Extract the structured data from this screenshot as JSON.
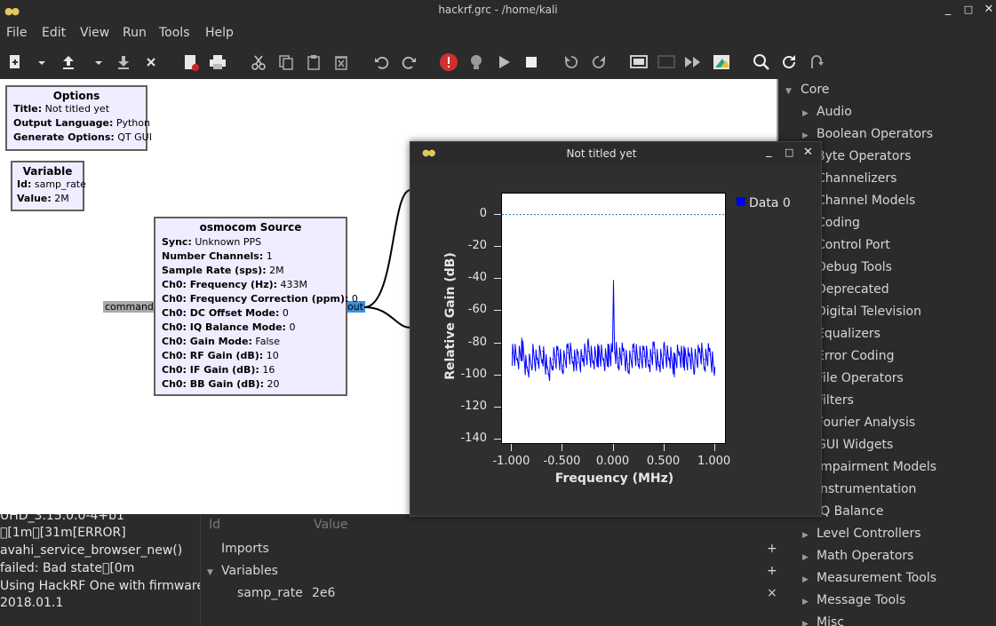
{
  "window": {
    "title": "hackrf.grc - /home/kali",
    "controls": {
      "minimize": "_",
      "maximize": "□",
      "close": "✕"
    }
  },
  "menu": [
    "File",
    "Edit",
    "View",
    "Run",
    "Tools",
    "Help"
  ],
  "toolbar_icons": [
    "new-icon",
    "new-dropdown-icon",
    "open-icon",
    "open-dropdown-icon",
    "save-icon",
    "close-icon",
    "document-properties-icon",
    "print-icon",
    "cut-icon",
    "copy-icon",
    "paste-icon",
    "delete-icon",
    "undo-icon",
    "redo-icon",
    "error-icon",
    "generate-icon",
    "execute-icon",
    "stop-icon",
    "rotate-ccw-icon",
    "rotate-cw-icon",
    "enable-icon",
    "disable-icon",
    "bypass-icon",
    "create-hier-icon",
    "find-icon",
    "reload-icon",
    "open-hier-icon"
  ],
  "blocks": {
    "options": {
      "title": "Options",
      "rows": [
        {
          "k": "Title:",
          "v": " Not titled yet"
        },
        {
          "k": "Output Language:",
          "v": " Python"
        },
        {
          "k": "Generate Options:",
          "v": " QT GUI"
        }
      ]
    },
    "variable": {
      "title": "Variable",
      "rows": [
        {
          "k": "Id:",
          "v": " samp_rate"
        },
        {
          "k": "Value:",
          "v": " 2M"
        }
      ]
    },
    "osmocom": {
      "title": "osmocom Source",
      "rows": [
        {
          "k": "Sync:",
          "v": " Unknown PPS"
        },
        {
          "k": "Number Channels:",
          "v": " 1"
        },
        {
          "k": "Sample Rate (sps):",
          "v": " 2M"
        },
        {
          "k": "Ch0: Frequency (Hz):",
          "v": " 433M"
        },
        {
          "k": "Ch0: Frequency Correction (ppm):",
          "v": " 0"
        },
        {
          "k": "Ch0: DC Offset Mode:",
          "v": " 0"
        },
        {
          "k": "Ch0: IQ Balance Mode:",
          "v": " 0"
        },
        {
          "k": "Ch0: Gain Mode:",
          "v": " False"
        },
        {
          "k": "Ch0: RF Gain (dB):",
          "v": " 10"
        },
        {
          "k": "Ch0: IF Gain (dB):",
          "v": " 16"
        },
        {
          "k": "Ch0: BB Gain (dB):",
          "v": " 20"
        }
      ],
      "port_in": "command",
      "port_out": "out"
    }
  },
  "sidebar": {
    "root": "Core",
    "items": [
      "Audio",
      "Boolean Operators",
      "Byte Operators",
      "Channelizers",
      "Channel Models",
      "Coding",
      "Control Port",
      "Debug Tools",
      "Deprecated",
      "Digital Television",
      "Equalizers",
      "Error Coding",
      "File Operators",
      "Filters",
      "Fourier Analysis",
      "GUI Widgets",
      "Impairment Models",
      "Instrumentation",
      "IQ Balance",
      "Level Controllers",
      "Math Operators",
      "Measurement Tools",
      "Message Tools",
      "Misc"
    ]
  },
  "console": {
    "lines": [
      "UHD_3.15.0.0-4+b1",
      "⃞[1m⃞[31m[ERROR]",
      "avahi_service_browser_new()",
      "failed: Bad state⃞[0m",
      "Using HackRF One with firmware",
      "2018.01.1"
    ]
  },
  "variables_panel": {
    "col_id": "Id",
    "col_value": "Value",
    "imports": "Imports",
    "variables": "Variables",
    "var_name": "samp_rate",
    "var_value": "2e6",
    "add": "+",
    "remove": "×"
  },
  "qt_window": {
    "title": "Not titled yet"
  },
  "chart_data": {
    "type": "line",
    "xlabel": "Frequency (MHz)",
    "ylabel": "Relative Gain (dB)",
    "xlim": [
      -1.1,
      1.1
    ],
    "ylim": [
      -142,
      13
    ],
    "xticks": [
      "-1.000",
      "-0.500",
      "0.000",
      "0.500",
      "1.000"
    ],
    "xtick_values": [
      -1.0,
      -0.5,
      0.0,
      0.5,
      1.0
    ],
    "yticks": [
      "0",
      "-20",
      "-40",
      "-60",
      "-80",
      "-100",
      "-120",
      "-140"
    ],
    "ytick_values": [
      0,
      -20,
      -40,
      -60,
      -80,
      -100,
      -120,
      -140
    ],
    "reference_line": 0,
    "series": [
      {
        "name": "Data 0",
        "color": "#0000ff",
        "x": [
          -1.0,
          -0.95,
          -0.9,
          -0.85,
          -0.8,
          -0.75,
          -0.7,
          -0.65,
          -0.6,
          -0.55,
          -0.5,
          -0.45,
          -0.4,
          -0.35,
          -0.3,
          -0.25,
          -0.2,
          -0.15,
          -0.1,
          -0.05,
          -0.01,
          0.0,
          0.01,
          0.05,
          0.1,
          0.15,
          0.2,
          0.25,
          0.3,
          0.35,
          0.4,
          0.45,
          0.5,
          0.55,
          0.6,
          0.65,
          0.7,
          0.75,
          0.8,
          0.85,
          0.9,
          0.95,
          1.0
        ],
        "y": [
          -86,
          -90,
          -84,
          -97,
          -88,
          -92,
          -85,
          -99,
          -90,
          -87,
          -94,
          -86,
          -89,
          -92,
          -88,
          -85,
          -91,
          -87,
          -90,
          -88,
          -85,
          -41,
          -86,
          -89,
          -87,
          -93,
          -85,
          -90,
          -88,
          -91,
          -86,
          -92,
          -87,
          -89,
          -93,
          -86,
          -90,
          -88,
          -92,
          -86,
          -90,
          -87,
          -95
        ]
      }
    ]
  }
}
